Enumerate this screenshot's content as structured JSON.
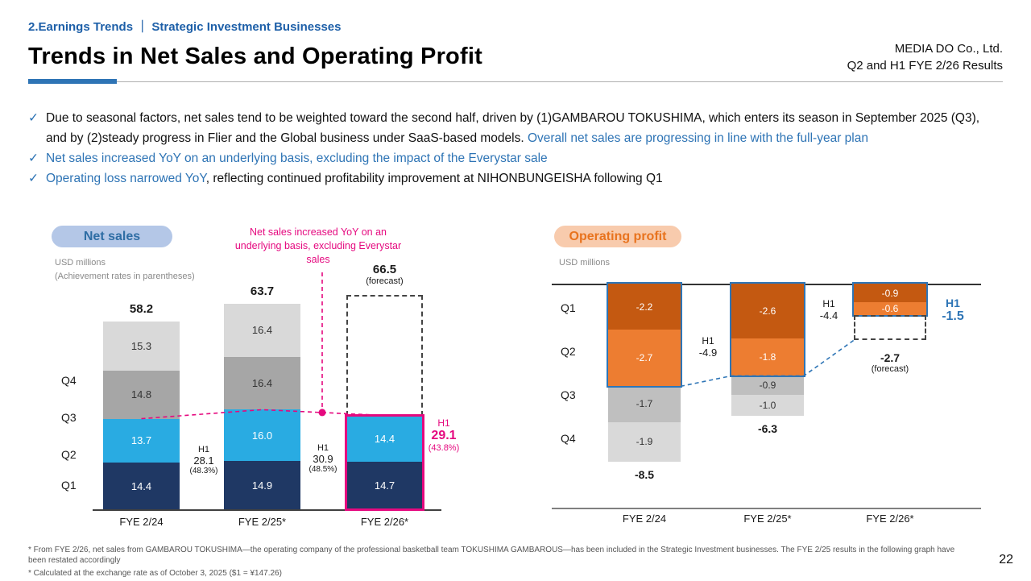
{
  "slide": {
    "eyebrow": "2.Earnings Trends ｜ Strategic Investment Businesses",
    "title": "Trends in Net Sales and Operating Profit",
    "company": "MEDIA DO Co., Ltd.",
    "results_line": "Q2 and H1 FYE 2/26 Results",
    "bullet_icon": "✓",
    "page_number": "22"
  },
  "colors": {
    "heading_blue": "#1d5fa8",
    "accent_blue": "#2e74b5",
    "accent_magenta": "#e5097f",
    "accent_orange": "#ed7d31"
  },
  "bullets": [
    {
      "parts": [
        {
          "text": "Due to seasonal factors, net sales tend to be weighted toward the second half, driven by (1)GAMBAROU TOKUSHIMA, which enters its season in September 2025 (Q3), and by (2)steady progress in Flier and the Global business under SaaS-based models. ",
          "style": "normal"
        },
        {
          "text": "Overall net sales are progressing in line with the full-year plan",
          "style": "accent"
        }
      ]
    },
    {
      "parts": [
        {
          "text": "Net sales increased YoY on an underlying basis, excluding the impact of the Everystar sale",
          "style": "accent"
        }
      ]
    },
    {
      "parts": [
        {
          "text": "Operating loss narrowed YoY",
          "style": "accent"
        },
        {
          "text": ", reflecting continued profitability improvement at NIHONBUNGEISHA following Q1",
          "style": "normal"
        }
      ]
    }
  ],
  "footnotes": [
    "* From FYE 2/26, net sales from GAMBAROU TOKUSHIMA—the operating company of the professional basketball team TOKUSHIMA GAMBAROUS—has been included in the Strategic Investment businesses. The FYE 2/25 results in the following graph have been restated accordingly",
    "* Calculated at the exchange rate as of October 3, 2025 ($1 = ¥147.26)"
  ],
  "chart_data": [
    {
      "id": "net_sales",
      "type": "bar",
      "stacked": true,
      "title": "Net sales",
      "badge_bg": "#b4c7e7",
      "badge_text_color": "#2e6da4",
      "unit_label": "USD millions",
      "sub_note": "(Achievement rates in parentheses)",
      "annotation": "Net sales increased YoY on an underlying basis, excluding Everystar sales",
      "accent_color": "#e5097f",
      "categories": [
        "FYE 2/24",
        "FYE 2/25*",
        "FYE 2/26*"
      ],
      "row_labels": [
        "Q4",
        "Q3",
        "Q2",
        "Q1"
      ],
      "series": [
        {
          "name": "Q1",
          "color": "#1f3864",
          "values": [
            14.4,
            14.9,
            14.7
          ]
        },
        {
          "name": "Q2",
          "color": "#29abe2",
          "values": [
            13.7,
            16.0,
            14.4
          ]
        },
        {
          "name": "Q3",
          "color": "#a6a6a6",
          "values": [
            14.8,
            16.4,
            null
          ]
        },
        {
          "name": "Q4",
          "color": "#d9d9d9",
          "values": [
            15.3,
            16.4,
            null
          ]
        }
      ],
      "totals": [
        58.2,
        63.7,
        66.5
      ],
      "total_suffix": [
        "",
        "",
        "(forecast)"
      ],
      "h1_labels": [
        {
          "title": "H1",
          "value": "28.1",
          "rate": "(48.3%)",
          "highlight": false
        },
        {
          "title": "H1",
          "value": "30.9",
          "rate": "(48.5%)",
          "highlight": false
        },
        {
          "title": "H1",
          "value": "29.1",
          "rate": "(43.8%)",
          "highlight": true
        }
      ],
      "legend_position": "none",
      "grid": false
    },
    {
      "id": "operating_profit",
      "type": "bar",
      "stacked": true,
      "direction": "negative-down",
      "title": "Operating profit",
      "badge_bg": "#f8cbad",
      "badge_text_color": "#e8731e",
      "unit_label": "USD millions",
      "h1_box_color": "#2e75b6",
      "categories": [
        "FYE 2/24",
        "FYE 2/25*",
        "FYE 2/26*"
      ],
      "row_labels": [
        "Q1",
        "Q2",
        "Q3",
        "Q4"
      ],
      "series": [
        {
          "name": "Q1",
          "color": "#c45911",
          "values": [
            -2.2,
            -2.6,
            -0.9
          ]
        },
        {
          "name": "Q2",
          "color": "#ed7d31",
          "values": [
            -2.7,
            -1.8,
            -0.6
          ]
        },
        {
          "name": "Q3",
          "color": "#bfbfbf",
          "values": [
            -1.7,
            -0.9,
            null
          ]
        },
        {
          "name": "Q4",
          "color": "#d9d9d9",
          "values": [
            -1.9,
            -1.0,
            null
          ]
        }
      ],
      "totals": [
        -8.5,
        -6.3,
        -2.7
      ],
      "total_suffix": [
        "",
        "",
        "(forecast)"
      ],
      "h1_labels": [
        {
          "title": "H1",
          "value": "-4.9",
          "highlight": false
        },
        {
          "title": "H1",
          "value": "-4.4",
          "highlight": false
        },
        {
          "title": "H1",
          "value": "-1.5",
          "highlight": true
        }
      ],
      "legend_position": "none",
      "grid": false
    }
  ]
}
